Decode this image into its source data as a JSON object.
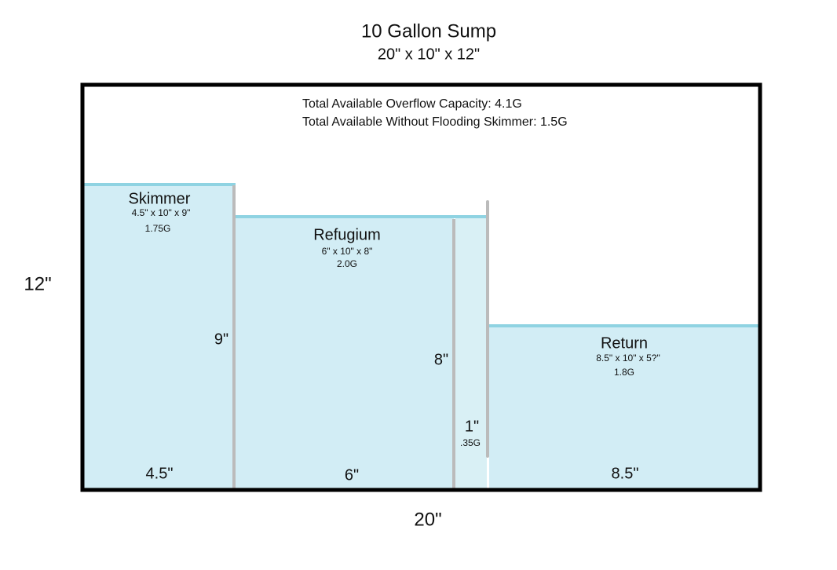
{
  "header": {
    "title": "10 Gallon Sump",
    "subtitle": "20\" x 10\" x 12\""
  },
  "dimensions": {
    "height": "12\"",
    "width": "20\""
  },
  "notes": [
    "Total Available Overflow Capacity: 4.1G",
    "Total Available Without Flooding Skimmer: 1.5G"
  ],
  "chambers": [
    {
      "name": "Skimmer",
      "size": "4.5\" x 10\" x 9\"",
      "volume": "1.75G",
      "height": "9\"",
      "width": "4.5\""
    },
    {
      "name": "Refugium",
      "size": "6\" x 10\" x 8\"",
      "volume": "2.0G",
      "height": "8\"",
      "width": "6\""
    },
    {
      "height": "1\"",
      "volume": ".35G"
    },
    {
      "name": "Return",
      "size": "8.5\" x 10\" x 5?\"",
      "volume": "1.8G",
      "width": "8.5\""
    }
  ]
}
